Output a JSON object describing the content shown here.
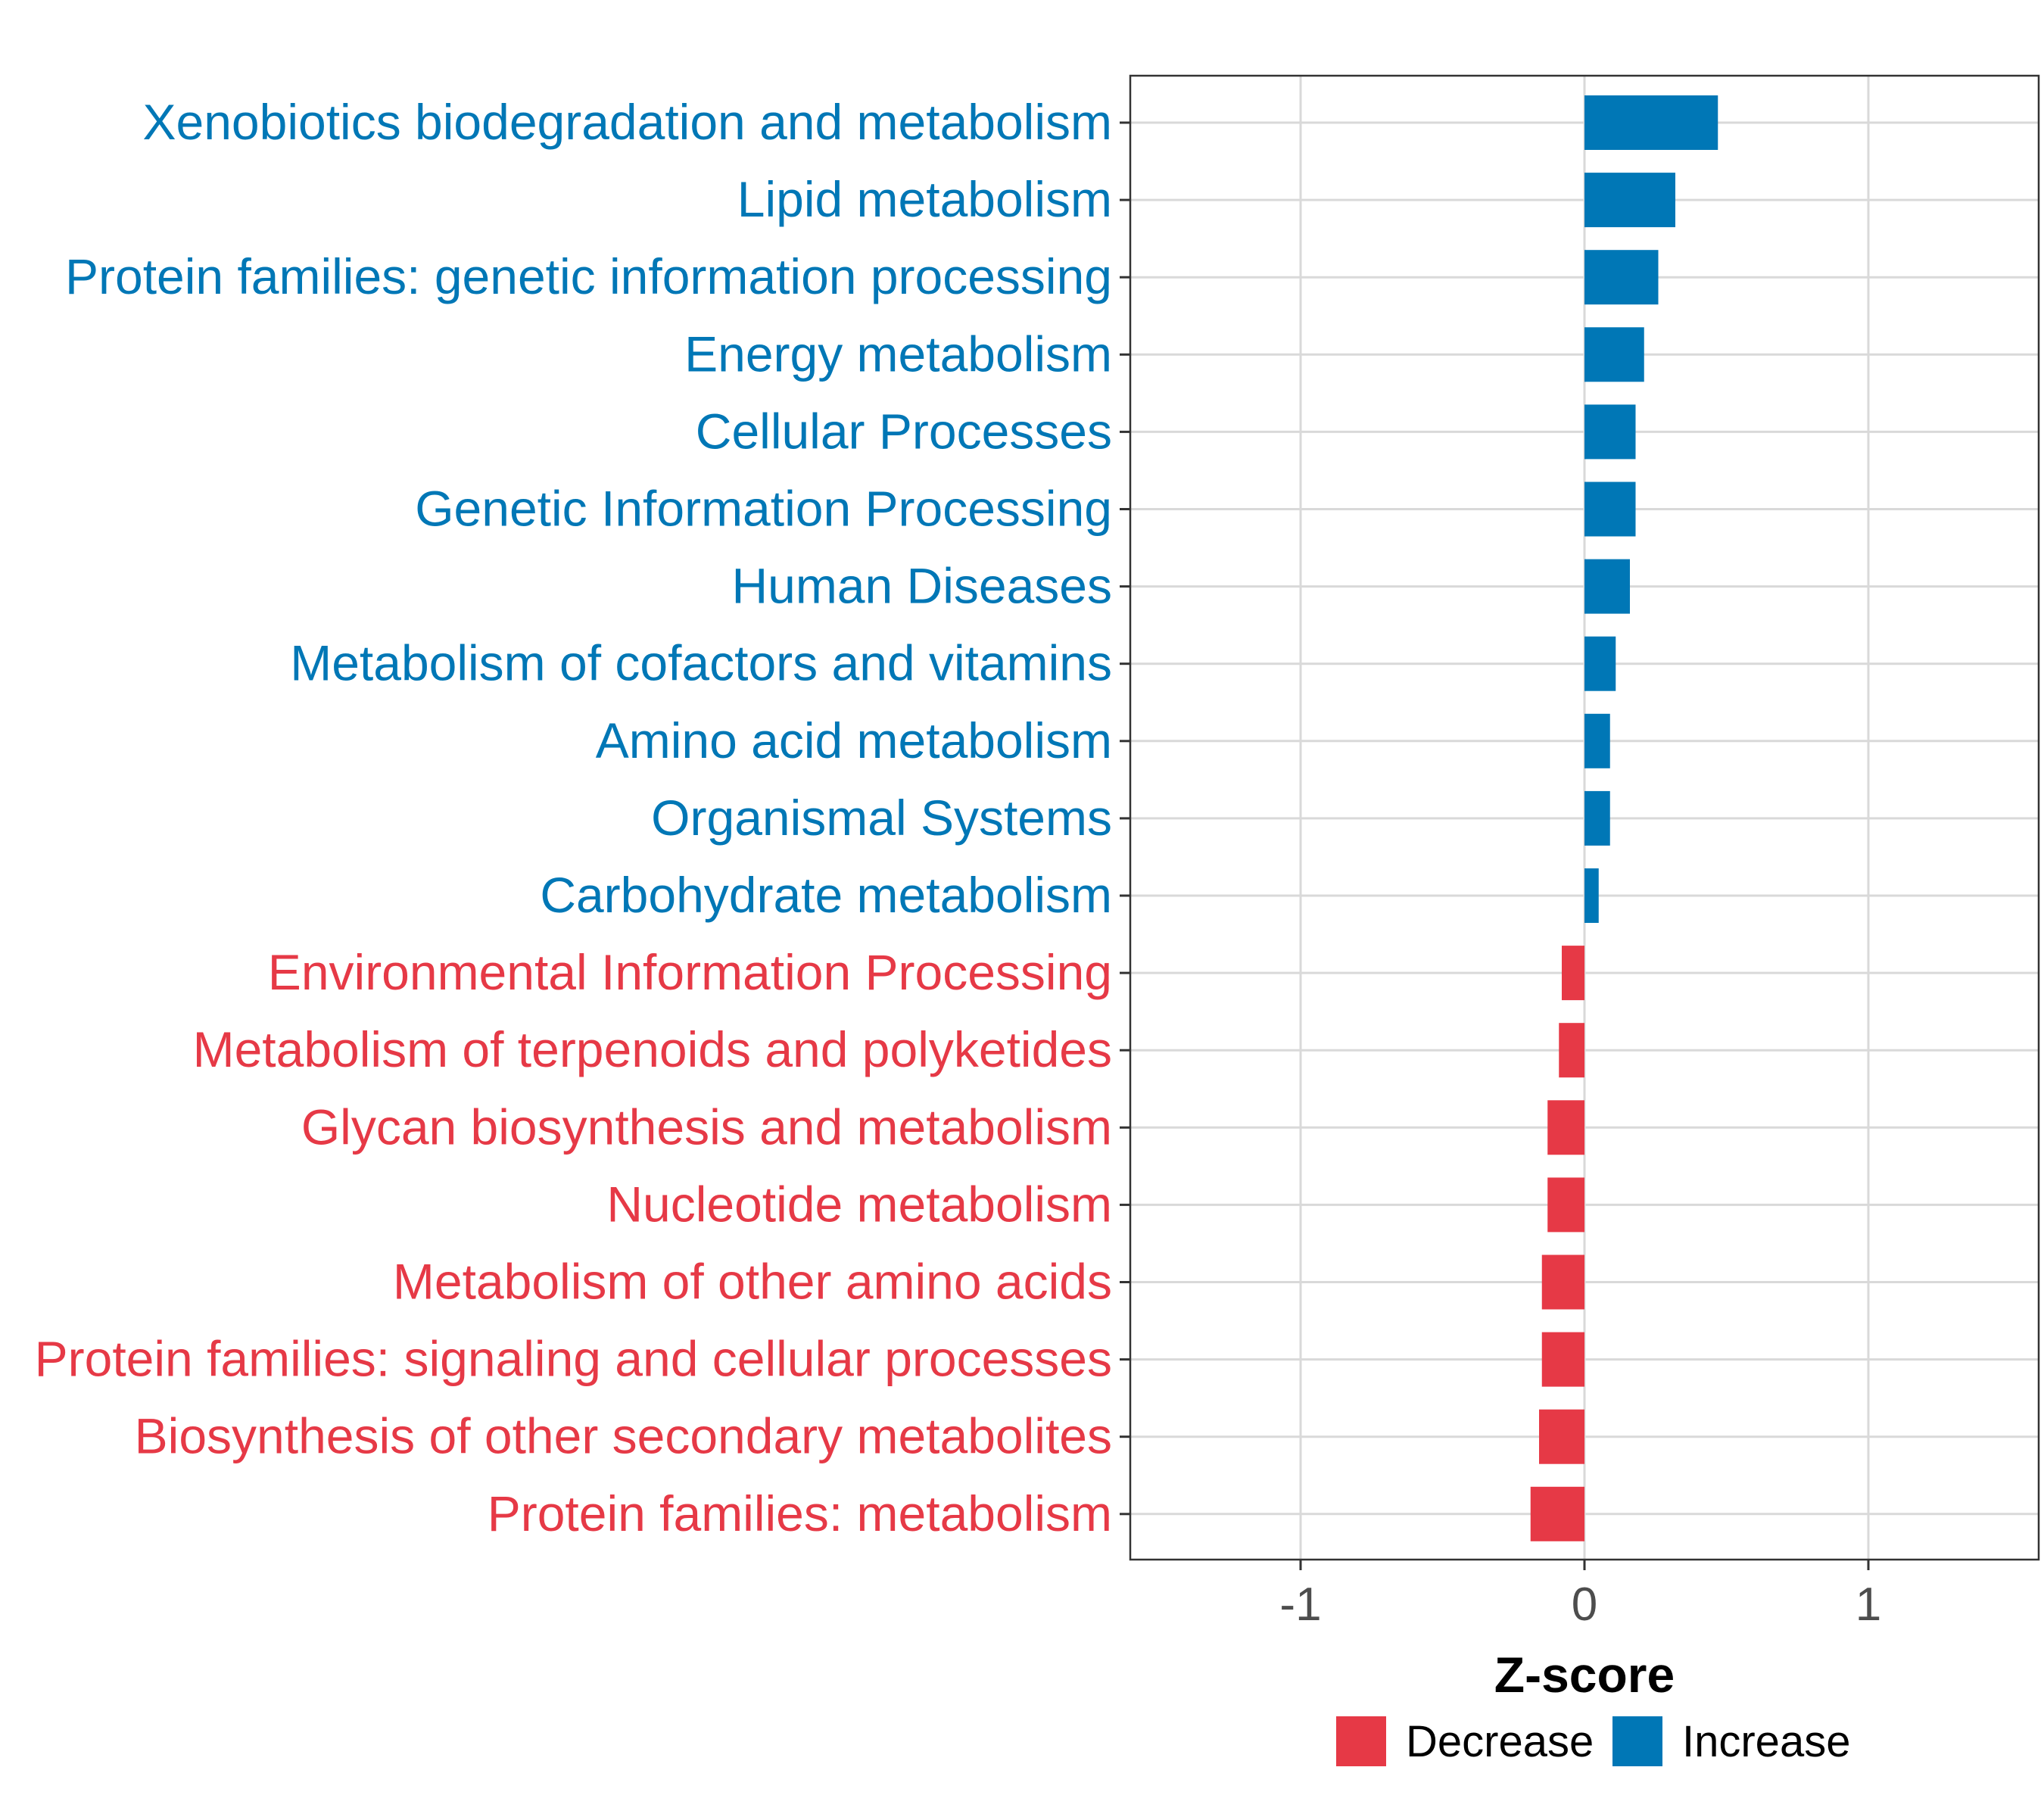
{
  "chart_data": {
    "type": "bar",
    "orientation": "horizontal",
    "xlabel": "Z-score",
    "ylabel": "",
    "xlim": [
      -1.6,
      1.6
    ],
    "xticks": [
      -1,
      0,
      1
    ],
    "xtick_labels": [
      "-1",
      "0",
      "1"
    ],
    "grid": true,
    "categories": [
      "Xenobiotics biodegradation and metabolism",
      "Lipid metabolism",
      "Protein families: genetic information processing",
      "Energy metabolism",
      "Cellular Processes",
      "Genetic Information Processing",
      "Human Diseases",
      "Metabolism of cofactors and vitamins",
      "Amino acid metabolism",
      "Organismal Systems",
      "Carbohydrate metabolism",
      "Environmental Information Processing",
      "Metabolism of terpenoids and polyketides",
      "Glycan biosynthesis and metabolism",
      "Nucleotide metabolism",
      "Metabolism of other amino acids",
      "Protein families: signaling and cellular processes",
      "Biosynthesis of other secondary metabolites",
      "Protein families: metabolism"
    ],
    "values": [
      0.47,
      0.32,
      0.26,
      0.21,
      0.18,
      0.18,
      0.16,
      0.11,
      0.09,
      0.09,
      0.05,
      -0.08,
      -0.09,
      -0.13,
      -0.13,
      -0.15,
      -0.15,
      -0.16,
      -0.19
    ],
    "groups": [
      "Increase",
      "Increase",
      "Increase",
      "Increase",
      "Increase",
      "Increase",
      "Increase",
      "Increase",
      "Increase",
      "Increase",
      "Increase",
      "Decrease",
      "Decrease",
      "Decrease",
      "Decrease",
      "Decrease",
      "Decrease",
      "Decrease",
      "Decrease"
    ],
    "legend": {
      "position": "bottom",
      "entries": [
        {
          "label": "Decrease",
          "color": "#E63946"
        },
        {
          "label": "Increase",
          "color": "#0077B6"
        }
      ]
    },
    "colors": {
      "Decrease": "#E63946",
      "Increase": "#0077B6"
    }
  }
}
